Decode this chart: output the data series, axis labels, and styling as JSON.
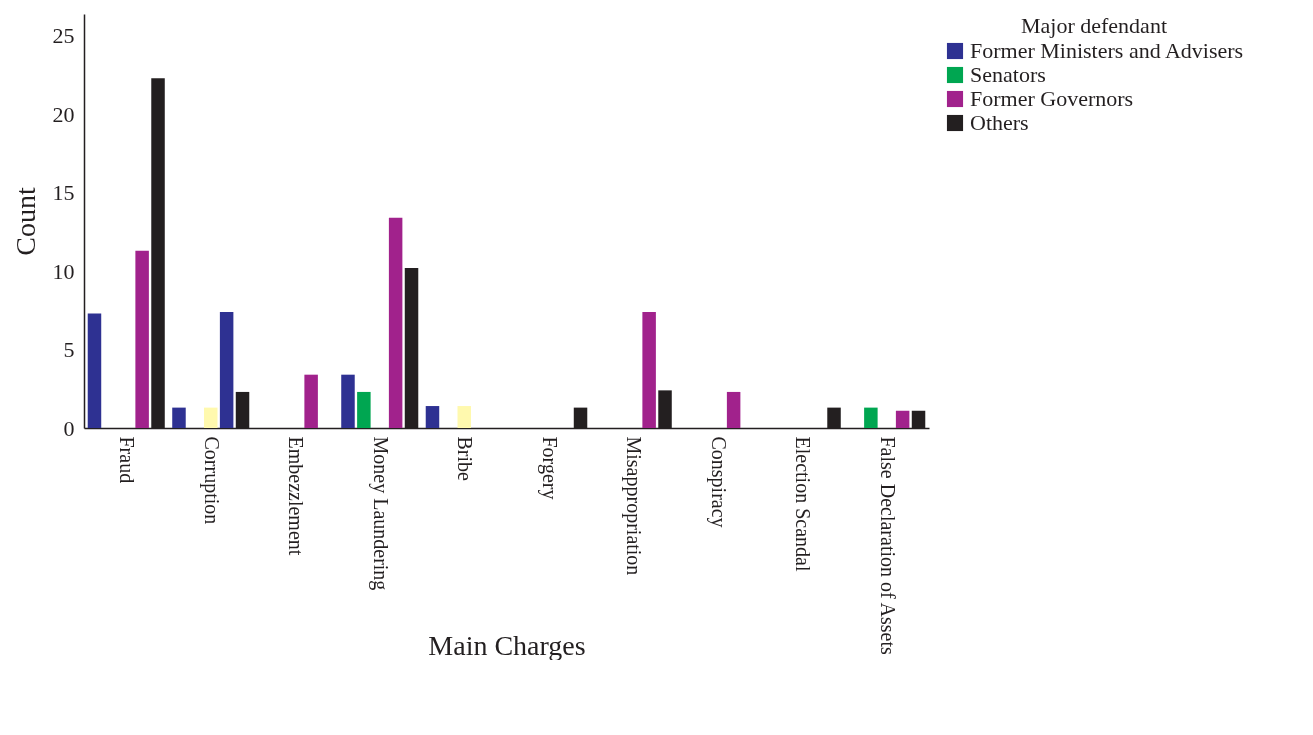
{
  "chart_data": {
    "type": "bar",
    "xlabel": "Main Charges",
    "ylabel": "Count",
    "legend_title": "Major defendant",
    "legend": "top right",
    "grid": false,
    "categories": [
      "Fraud",
      "Corruption",
      "Embezzlement",
      "Money Laundering",
      "Bribe",
      "Forgery",
      "Misappropriation",
      "Conspiracy",
      "Election Scandal",
      "False Declaration of Assets"
    ],
    "ylim": [
      0,
      26.4
    ],
    "yticks": [
      0,
      5,
      10,
      15,
      20,
      25
    ],
    "series": [
      {
        "name": "Former Ministers and Advisers",
        "color": "#2e3192",
        "values": [
          7.3,
          1.3,
          null,
          3.4,
          1.4,
          null,
          null,
          null,
          null,
          null
        ]
      },
      {
        "name": "Senators",
        "color": "#00a651",
        "values": [
          null,
          null,
          null,
          2.3,
          null,
          null,
          null,
          null,
          null,
          1.3
        ]
      },
      {
        "color": "#fff9ae",
        "values": [
          null,
          1.3,
          null,
          null,
          1.4,
          null,
          null,
          null,
          null,
          null
        ]
      },
      {
        "name": "Former Governors",
        "color": "#a1228c",
        "colors": [
          "#a1228c",
          "#2e3192",
          "#a1228c",
          "#a1228c",
          "#a1228c",
          "#a1228c",
          "#a1228c",
          "#a1228c",
          "#a1228c",
          "#a1228c"
        ],
        "values": [
          11.3,
          7.4,
          3.4,
          13.4,
          null,
          null,
          7.4,
          2.3,
          null,
          1.1
        ]
      },
      {
        "name": "Others",
        "color": "#231f20",
        "values": [
          22.3,
          2.3,
          null,
          10.2,
          null,
          1.3,
          2.4,
          null,
          1.3,
          1.1
        ]
      }
    ]
  }
}
